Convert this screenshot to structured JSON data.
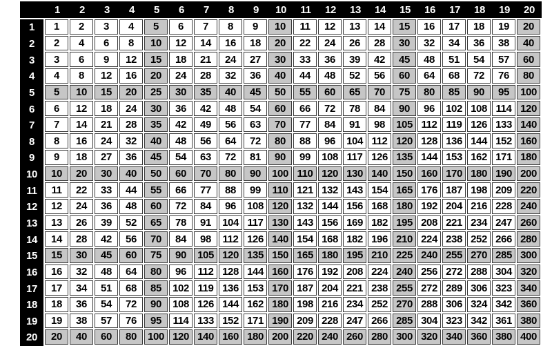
{
  "chart_data": {
    "type": "table",
    "description": "20 by 20 multiplication table",
    "column_headers": [
      "1",
      "2",
      "3",
      "4",
      "5",
      "6",
      "7",
      "8",
      "9",
      "10",
      "11",
      "12",
      "13",
      "14",
      "15",
      "16",
      "17",
      "18",
      "19",
      "20"
    ],
    "row_headers": [
      "1",
      "2",
      "3",
      "4",
      "5",
      "6",
      "7",
      "8",
      "9",
      "10",
      "11",
      "12",
      "13",
      "14",
      "15",
      "16",
      "17",
      "18",
      "19",
      "20"
    ],
    "rows": [
      [
        1,
        2,
        3,
        4,
        5,
        6,
        7,
        8,
        9,
        10,
        11,
        12,
        13,
        14,
        15,
        16,
        17,
        18,
        19,
        20
      ],
      [
        2,
        4,
        6,
        8,
        10,
        12,
        14,
        16,
        18,
        20,
        22,
        24,
        26,
        28,
        30,
        32,
        34,
        36,
        38,
        40
      ],
      [
        3,
        6,
        9,
        12,
        15,
        18,
        21,
        24,
        27,
        30,
        33,
        36,
        39,
        42,
        45,
        48,
        51,
        54,
        57,
        60
      ],
      [
        4,
        8,
        12,
        16,
        20,
        24,
        28,
        32,
        36,
        40,
        44,
        48,
        52,
        56,
        60,
        64,
        68,
        72,
        76,
        80
      ],
      [
        5,
        10,
        15,
        20,
        25,
        30,
        35,
        40,
        45,
        50,
        55,
        60,
        65,
        70,
        75,
        80,
        85,
        90,
        95,
        100
      ],
      [
        6,
        12,
        18,
        24,
        30,
        36,
        42,
        48,
        54,
        60,
        66,
        72,
        78,
        84,
        90,
        96,
        102,
        108,
        114,
        120
      ],
      [
        7,
        14,
        21,
        28,
        35,
        42,
        49,
        56,
        63,
        70,
        77,
        84,
        91,
        98,
        105,
        112,
        119,
        126,
        133,
        140
      ],
      [
        8,
        16,
        24,
        32,
        40,
        48,
        56,
        64,
        72,
        80,
        88,
        96,
        104,
        112,
        120,
        128,
        136,
        144,
        152,
        160
      ],
      [
        9,
        18,
        27,
        36,
        45,
        54,
        63,
        72,
        81,
        90,
        99,
        108,
        117,
        126,
        135,
        144,
        153,
        162,
        171,
        180
      ],
      [
        10,
        20,
        30,
        40,
        50,
        60,
        70,
        80,
        90,
        100,
        110,
        120,
        130,
        140,
        150,
        160,
        170,
        180,
        190,
        200
      ],
      [
        11,
        22,
        33,
        44,
        55,
        66,
        77,
        88,
        99,
        110,
        121,
        132,
        143,
        154,
        165,
        176,
        187,
        198,
        209,
        220
      ],
      [
        12,
        24,
        36,
        48,
        60,
        72,
        84,
        96,
        108,
        120,
        132,
        144,
        156,
        168,
        180,
        192,
        204,
        216,
        228,
        240
      ],
      [
        13,
        26,
        39,
        52,
        65,
        78,
        91,
        104,
        117,
        130,
        143,
        156,
        169,
        182,
        195,
        208,
        221,
        234,
        247,
        260
      ],
      [
        14,
        28,
        42,
        56,
        70,
        84,
        98,
        112,
        126,
        140,
        154,
        168,
        182,
        196,
        210,
        224,
        238,
        252,
        266,
        280
      ],
      [
        15,
        30,
        45,
        60,
        75,
        90,
        105,
        120,
        135,
        150,
        165,
        180,
        195,
        210,
        225,
        240,
        255,
        270,
        285,
        300
      ],
      [
        16,
        32,
        48,
        64,
        80,
        96,
        112,
        128,
        144,
        160,
        176,
        192,
        208,
        224,
        240,
        256,
        272,
        288,
        304,
        320
      ],
      [
        17,
        34,
        51,
        68,
        85,
        102,
        119,
        136,
        153,
        170,
        187,
        204,
        221,
        238,
        255,
        272,
        289,
        306,
        323,
        340
      ],
      [
        18,
        36,
        54,
        72,
        90,
        108,
        126,
        144,
        162,
        180,
        198,
        216,
        234,
        252,
        270,
        288,
        306,
        324,
        342,
        360
      ],
      [
        19,
        38,
        57,
        76,
        95,
        114,
        133,
        152,
        171,
        190,
        209,
        228,
        247,
        266,
        285,
        304,
        323,
        342,
        361,
        380
      ],
      [
        20,
        40,
        60,
        80,
        100,
        120,
        140,
        160,
        180,
        200,
        220,
        240,
        260,
        280,
        300,
        320,
        340,
        360,
        380,
        400
      ]
    ],
    "shaded_interval": 5
  },
  "style": {
    "header_bg": "#000000",
    "header_text_color": "#ffffff",
    "cell_bg": "#ffffff",
    "shaded_cell_bg": "#c6c6c6",
    "cell_text_color": "#000000",
    "cell_border_color": "#3a3a3a"
  }
}
